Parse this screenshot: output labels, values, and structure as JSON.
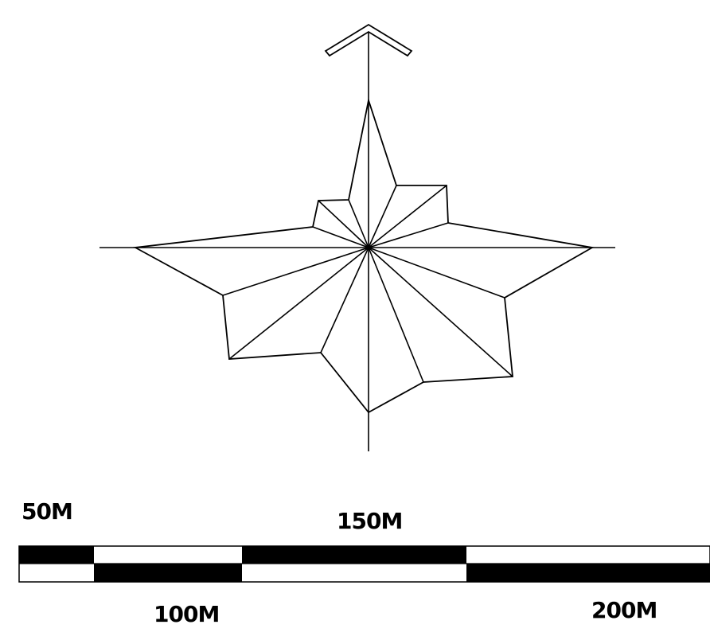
{
  "wind_rose": {
    "north_arrow": "north-arrow-icon",
    "line_color": "#000000",
    "fill_color": "#ffffff"
  },
  "scale_bar": {
    "labels": {
      "m50": "50M",
      "m100": "100M",
      "m150": "150M",
      "m200": "200M"
    },
    "colors": {
      "dark": "#000000",
      "light": "#ffffff"
    }
  }
}
